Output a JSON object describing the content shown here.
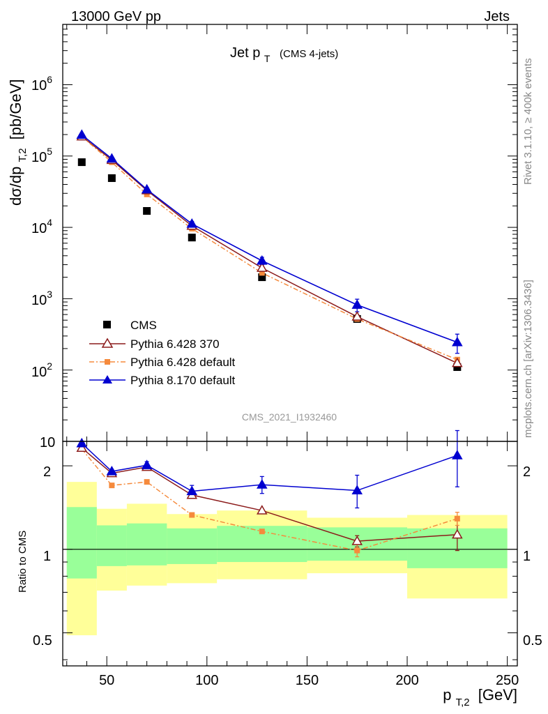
{
  "header": {
    "left": "13000 GeV pp",
    "right": "Jets"
  },
  "side": {
    "rivet": "Rivet 3.1.10, ≥ 400k events",
    "mcplots": "mcplots.cern.ch [arXiv:1306.3436]"
  },
  "chart_data": [
    {
      "type": "scatter",
      "title_main": "Jet p",
      "title_sub": "T",
      "title_note": "(CMS 4-jets)",
      "analysis": "CMS_2021_I1932460",
      "ylabel": "dσ/dp",
      "ylabel_sub": "T,2",
      "ylabel_unit": "[pb/GeV]",
      "yscale": "log",
      "ylim": [
        10,
        7000000
      ],
      "xlim": [
        28,
        255
      ],
      "ytick_values": [
        100,
        1000,
        10000,
        100000,
        1000000
      ],
      "ytick_labels": [
        {
          "base": "10",
          "exp": "2"
        },
        {
          "base": "10",
          "exp": "3"
        },
        {
          "base": "10",
          "exp": "4"
        },
        {
          "base": "10",
          "exp": "5"
        },
        {
          "base": "10",
          "exp": "6"
        }
      ],
      "ytick_bottom_label": "10",
      "legend_position": "lower-left",
      "series": [
        {
          "name": "CMS",
          "marker": "square",
          "color": "#000000",
          "x": [
            37.5,
            52.5,
            70,
            92.5,
            127.5,
            175,
            225
          ],
          "y": [
            82000,
            49000,
            17000,
            7200,
            2000,
            520,
            110
          ]
        },
        {
          "name": "Pythia 6.428 370",
          "marker": "open-triangle",
          "color": "#8b1a1a",
          "x": [
            37.5,
            52.5,
            70,
            92.5,
            127.5,
            175,
            225
          ],
          "y": [
            188000,
            88000,
            33000,
            10500,
            2700,
            560,
            125
          ]
        },
        {
          "name": "Pythia 6.428 default",
          "marker": "small-square",
          "color": "#f58a3c",
          "x": [
            37.5,
            52.5,
            70,
            92.5,
            127.5,
            175,
            225
          ],
          "y": [
            187000,
            82000,
            29000,
            9600,
            2300,
            520,
            140
          ]
        },
        {
          "name": "Pythia 8.170 default",
          "marker": "filled-triangle",
          "color": "#0000d0",
          "x": [
            37.5,
            52.5,
            70,
            92.5,
            127.5,
            175,
            225
          ],
          "y": [
            198000,
            92000,
            34000,
            11200,
            3400,
            820,
            245
          ]
        }
      ]
    },
    {
      "type": "scatter",
      "ylabel": "Ratio to CMS",
      "xlabel": "p",
      "xlabel_sub": "T,2",
      "xlabel_unit": "[GeV]",
      "yscale": "log",
      "ylim": [
        0.38,
        2.45
      ],
      "xlim": [
        28,
        255
      ],
      "ytick_labels": [
        "0.5",
        "1",
        "2"
      ],
      "ytick_values": [
        0.5,
        1,
        2
      ],
      "xtick_labels": [
        "50",
        "100",
        "150",
        "200",
        "250"
      ],
      "xtick_values": [
        50,
        100,
        150,
        200,
        250
      ],
      "bands": {
        "bins": [
          [
            30,
            45
          ],
          [
            45,
            60
          ],
          [
            60,
            80
          ],
          [
            80,
            105
          ],
          [
            105,
            150
          ],
          [
            150,
            200
          ],
          [
            200,
            250
          ]
        ],
        "yellow_low": [
          0.49,
          0.71,
          0.74,
          0.755,
          0.78,
          0.82,
          0.665
        ],
        "yellow_high": [
          1.75,
          1.4,
          1.46,
          1.34,
          1.38,
          1.3,
          1.33
        ],
        "green_low": [
          0.785,
          0.87,
          0.875,
          0.885,
          0.9,
          0.91,
          0.855
        ],
        "green_high": [
          1.42,
          1.22,
          1.24,
          1.19,
          1.215,
          1.2,
          1.19
        ]
      },
      "series": [
        {
          "name": "Pythia 6.428 370",
          "color": "#8b1a1a",
          "x": [
            37.5,
            52.5,
            70,
            92.5,
            127.5,
            175,
            225
          ],
          "y": [
            2.32,
            1.88,
            1.98,
            1.57,
            1.38,
            1.07,
            1.13
          ]
        },
        {
          "name": "Pythia 6.428 default",
          "color": "#f58a3c",
          "x": [
            37.5,
            52.5,
            70,
            92.5,
            127.5,
            175,
            225
          ],
          "y": [
            2.3,
            1.7,
            1.75,
            1.33,
            1.16,
            0.99,
            1.29
          ]
        },
        {
          "name": "Pythia 8.170 default",
          "color": "#0000d0",
          "x": [
            37.5,
            52.5,
            70,
            92.5,
            127.5,
            175,
            225
          ],
          "y": [
            2.41,
            1.91,
            2.01,
            1.62,
            1.71,
            1.63,
            2.18
          ],
          "err": [
            0.02,
            0.03,
            0.06,
            0.08,
            0.12,
            0.22,
            0.5
          ]
        }
      ]
    }
  ]
}
